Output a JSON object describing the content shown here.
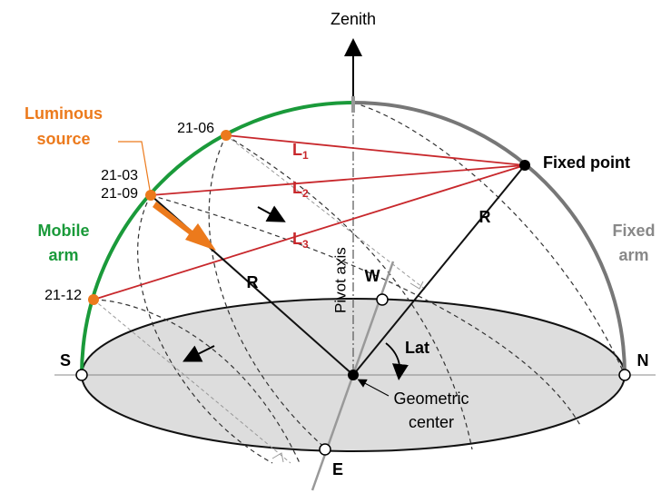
{
  "title": "Zenith",
  "luminous_source": [
    "Luminous",
    "source"
  ],
  "dates": {
    "june": "21-06",
    "march": "21-03",
    "september": "21-09",
    "december": "21-12"
  },
  "mobile_arm": [
    "Mobile",
    "arm"
  ],
  "fixed_arm": [
    "Fixed",
    "arm"
  ],
  "fixed_point": "Fixed point",
  "distances": [
    {
      "letter": "L",
      "sub": "1"
    },
    {
      "letter": "L",
      "sub": "2"
    },
    {
      "letter": "L",
      "sub": "3"
    }
  ],
  "radius_labels": [
    "R",
    "R"
  ],
  "pivot_axis": "Pivot axis",
  "cardinal": {
    "south": "S",
    "north": "N",
    "west": "W",
    "east": "E"
  },
  "latitude": "Lat",
  "geometric_center": [
    "Geometric",
    "center"
  ]
}
